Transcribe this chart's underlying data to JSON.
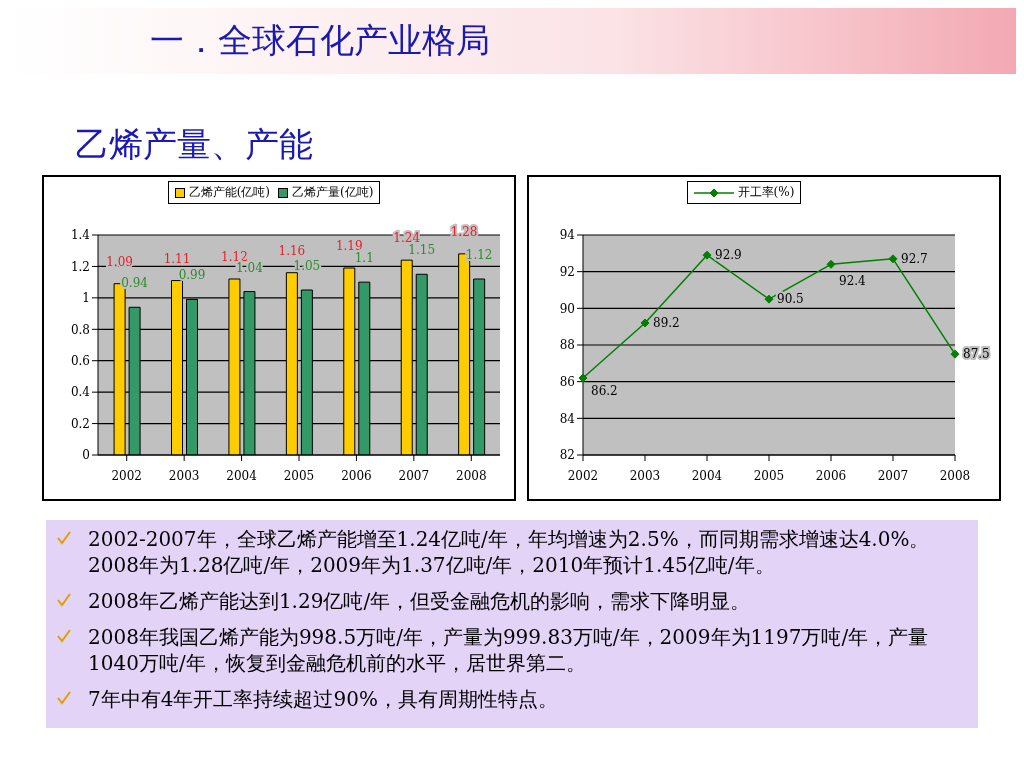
{
  "chart_data": [
    {
      "type": "other",
      "title": "一．全球石化产业格局",
      "subtitle": "乙烯产量、产能"
    },
    {
      "type": "bar",
      "categories": [
        "2002",
        "2003",
        "2004",
        "2005",
        "2006",
        "2007",
        "2008"
      ],
      "series": [
        {
          "name": "乙烯产能(亿吨)",
          "color": "#ffcc00",
          "values": [
            1.09,
            1.11,
            1.12,
            1.16,
            1.19,
            1.24,
            1.28
          ]
        },
        {
          "name": "乙烯产量(亿吨)",
          "color": "#339966",
          "values": [
            0.94,
            0.99,
            1.04,
            1.05,
            1.1,
            1.15,
            1.12
          ]
        }
      ],
      "ylim": [
        0,
        1.4
      ],
      "yticks": [
        0,
        0.2,
        0.4,
        0.6,
        0.8,
        1,
        1.2,
        1.4
      ],
      "grid": "y",
      "legend": "top",
      "data_labels": true
    },
    {
      "type": "line",
      "categories": [
        "2002",
        "2003",
        "2004",
        "2005",
        "2006",
        "2007",
        "2008"
      ],
      "series": [
        {
          "name": "开工率(%)",
          "color": "#008000",
          "values": [
            86.2,
            89.2,
            92.9,
            90.5,
            92.4,
            92.7,
            87.5
          ]
        }
      ],
      "ylim": [
        82,
        94
      ],
      "yticks": [
        82,
        84,
        86,
        88,
        90,
        92,
        94
      ],
      "grid": "y",
      "legend": "top",
      "marker": "diamond",
      "data_labels": true
    },
    {
      "type": "other",
      "annotations": [
        "2002-2007年，全球乙烯产能增至1.24亿吨/年，年均增速为2.5%，而同期需求增速达4.0%。2008年为1.28亿吨/年，2009年为1.37亿吨/年，2010年预计1.45亿吨/年。",
        "2008年乙烯产能达到1.29亿吨/年，但受金融危机的影响，需求下降明显。",
        "2008年我国乙烯产能为998.5万吨/年，产量为999.83万吨/年，2009年为1197万吨/年，产量1040万吨/年，恢复到金融危机前的水平，居世界第二。",
        "7年中有4年开工率持续超过90%，具有周期性特点。"
      ]
    }
  ]
}
